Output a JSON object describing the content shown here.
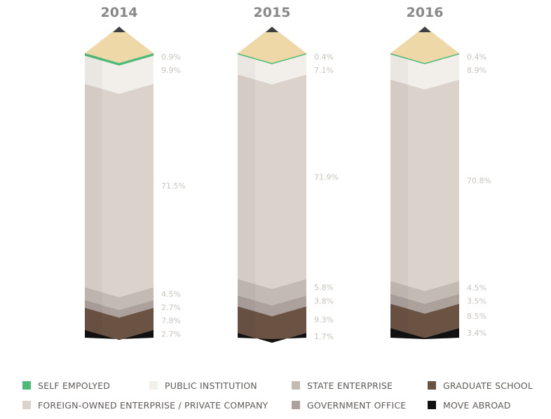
{
  "chart_data": {
    "type": "bar",
    "stacked": true,
    "categories": [
      "2014",
      "2015",
      "2016"
    ],
    "series": [
      {
        "name": "SELF EMPOLYED",
        "color": "#4dbb76",
        "values": [
          0.9,
          0.4,
          0.4
        ]
      },
      {
        "name": "PUBLIC INSTITUTION",
        "color": "#f2eee9",
        "values": [
          9.9,
          7.1,
          8.9
        ]
      },
      {
        "name": "FOREIGN-OWNED ENTERPRISE / PRIVATE COMPANY",
        "color": "#dad2cb",
        "values": [
          71.5,
          71.9,
          70.8
        ]
      },
      {
        "name": "STATE ENTERPRISE",
        "color": "#c3bab3",
        "values": [
          4.5,
          5.8,
          4.5
        ]
      },
      {
        "name": "GOVERNMENT OFFICE",
        "color": "#ada19c",
        "values": [
          2.7,
          3.8,
          3.5
        ]
      },
      {
        "name": "GRADUATE SCHOOL",
        "color": "#6b5344",
        "values": [
          7.8,
          9.3,
          8.5
        ]
      },
      {
        "name": "MOVE ABROAD",
        "color": "#111111",
        "values": [
          2.7,
          1.7,
          3.4
        ]
      }
    ],
    "value_labels": [
      [
        "0.9%",
        "9.9%",
        "71.5%",
        "4.5%",
        "2.7%",
        "7.8%",
        "2.7%"
      ],
      [
        "0.4%",
        "7.1%",
        "71.9%",
        "5.8%",
        "3.8%",
        "9.3%",
        "1.7%"
      ],
      [
        "0.4%",
        "8.9%",
        "70.8%",
        "4.5%",
        "3.5%",
        "8.5%",
        "3.4%"
      ]
    ],
    "pencil_wood_color": "#efd8a8",
    "pencil_lead_color": "#3d3f43"
  },
  "legend": {
    "items": [
      {
        "label": "SELF EMPOLYED",
        "color": "#4dbb76"
      },
      {
        "label": "PUBLIC INSTITUTION",
        "color": "#f2eee9"
      },
      {
        "label": "STATE ENTERPRISE",
        "color": "#c3bab3"
      },
      {
        "label": "GRADUATE SCHOOL",
        "color": "#6b5344"
      },
      {
        "label": "FOREIGN-OWNED ENTERPRISE / PRIVATE COMPANY",
        "color": "#dad2cb"
      },
      {
        "label": "GOVERNMENT OFFICE",
        "color": "#ada19c"
      },
      {
        "label": "MOVE ABROAD",
        "color": "#111111"
      }
    ]
  }
}
